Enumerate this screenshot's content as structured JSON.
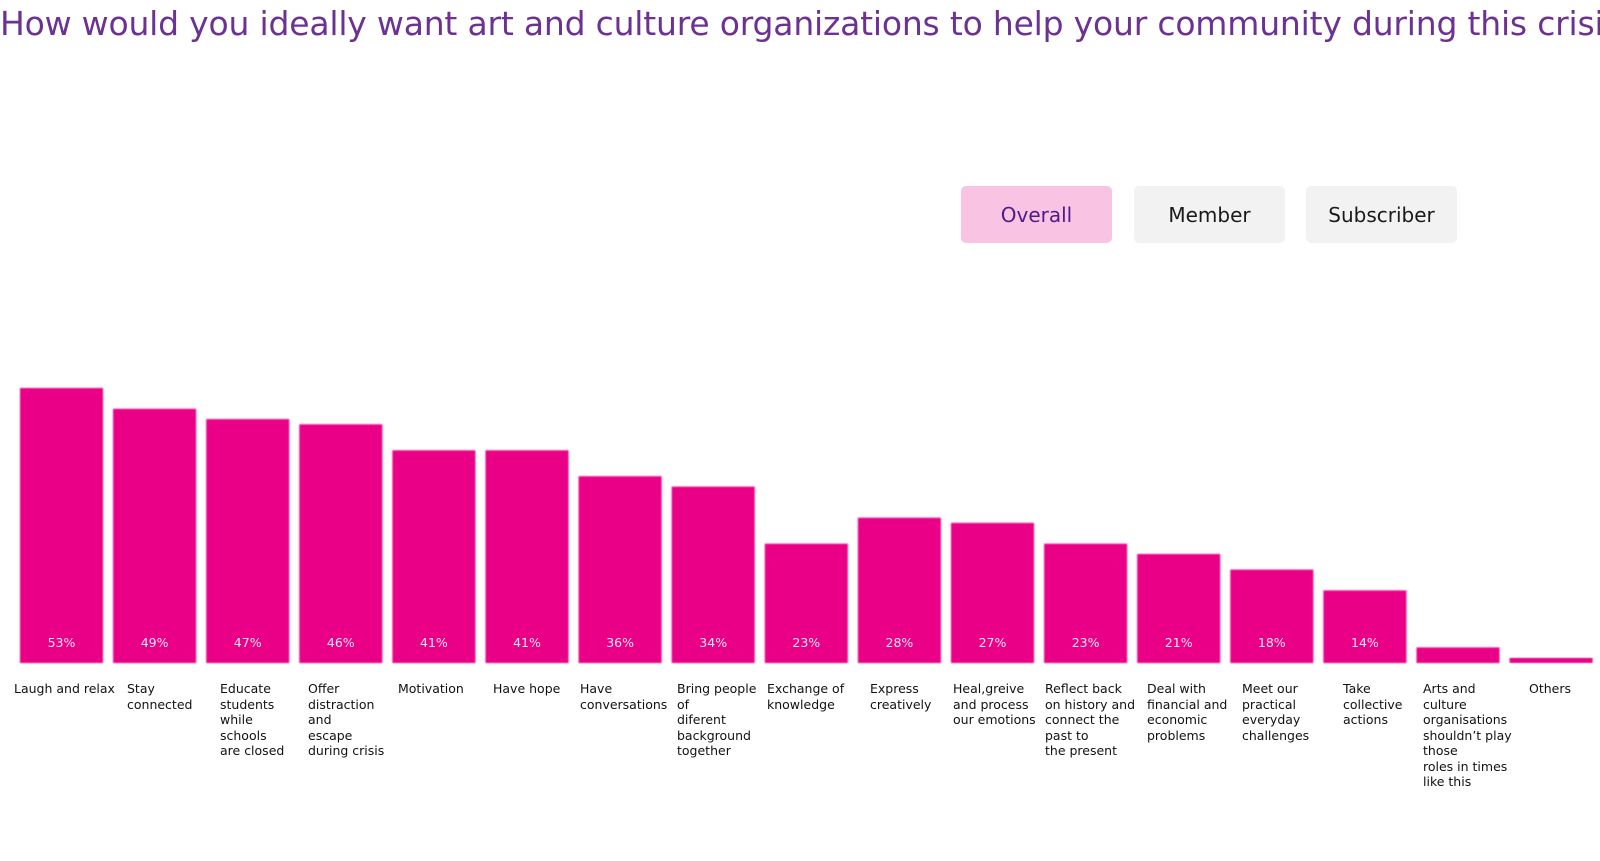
{
  "title": "How would you ideally want art and culture organizations to help your community during this crisis?",
  "filters": [
    {
      "label": "Overall",
      "active": true
    },
    {
      "label": "Member",
      "active": false
    },
    {
      "label": "Subscriber",
      "active": false
    }
  ],
  "colors": {
    "title": "#6b3294",
    "bar": "#ea0086",
    "active_filter_bg": "#f9c3e3",
    "inactive_filter_bg": "#f2f2f2"
  },
  "chart_data": {
    "type": "bar",
    "title": "",
    "xlabel": "",
    "ylabel": "",
    "ylim": [
      0,
      53
    ],
    "grid": false,
    "categories": [
      [
        "Laugh and relax"
      ],
      [
        "Stay",
        "connected"
      ],
      [
        "Educate",
        "students",
        "while",
        "schools",
        "are closed"
      ],
      [
        "Offer",
        "distraction",
        "and",
        "escape",
        "during crisis"
      ],
      [
        "Motivation"
      ],
      [
        "Have hope"
      ],
      [
        "Have",
        "conversations"
      ],
      [
        "Bring people",
        "of",
        "diferent",
        "background",
        "together"
      ],
      [
        "Exchange of",
        "knowledge"
      ],
      [
        "Express",
        "creatively"
      ],
      [
        "Heal,greive",
        "and process",
        "our emotions"
      ],
      [
        "Reflect back",
        "on history and",
        "connect the",
        "past to",
        "the present"
      ],
      [
        "Deal with",
        "financial and",
        "economic",
        "problems"
      ],
      [
        "Meet our",
        "practical",
        "everyday",
        "challenges"
      ],
      [
        "Take",
        "collective",
        "actions"
      ],
      [
        "Arts and",
        "culture",
        "organisations",
        "shouldn’t play",
        "those",
        "roles in times",
        "like this"
      ],
      [
        "Others"
      ]
    ],
    "values": [
      53,
      49,
      47,
      46,
      41,
      41,
      36,
      34,
      23,
      28,
      27,
      23,
      21,
      18,
      14,
      3,
      1
    ],
    "value_labels": [
      "53%",
      "49%",
      "47%",
      "46%",
      "41%",
      "41%",
      "36%",
      "34%",
      "23%",
      "28%",
      "27%",
      "23%",
      "21%",
      "18%",
      "14%",
      "",
      ""
    ]
  }
}
